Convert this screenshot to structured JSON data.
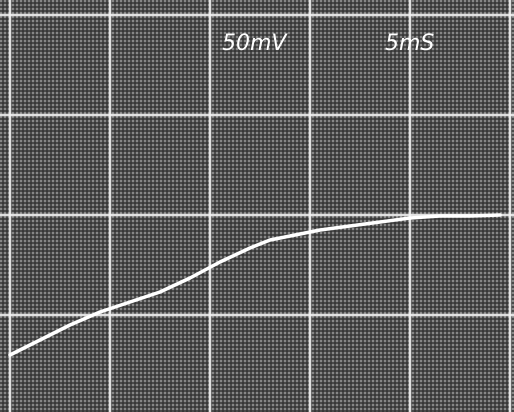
{
  "chart_data": {
    "type": "line",
    "annotations": [
      "50mV",
      "5mS"
    ],
    "x": [
      0,
      0.2,
      0.4,
      0.6,
      0.9,
      1.2,
      1.5,
      1.8,
      2.1,
      2.4,
      2.6,
      2.8,
      3.1,
      3.4,
      3.7,
      4.0,
      4.3,
      4.6,
      4.9
    ],
    "series": [
      {
        "color": "#ffffff",
        "values": [
          -0.4,
          -0.3,
          -0.2,
          -0.1,
          0.03,
          0.13,
          0.23,
          0.37,
          0.53,
          0.67,
          0.75,
          0.79,
          0.85,
          0.89,
          0.93,
          0.97,
          0.99,
          0.99,
          1.0
        ]
      }
    ],
    "xlim": [
      -0.1,
      5.04
    ],
    "ylim": [
      -0.97,
      3.15
    ],
    "xticks": [
      0,
      1,
      2,
      3,
      4,
      5
    ],
    "yticks": [
      0,
      1,
      2,
      3
    ],
    "grid": true
  }
}
